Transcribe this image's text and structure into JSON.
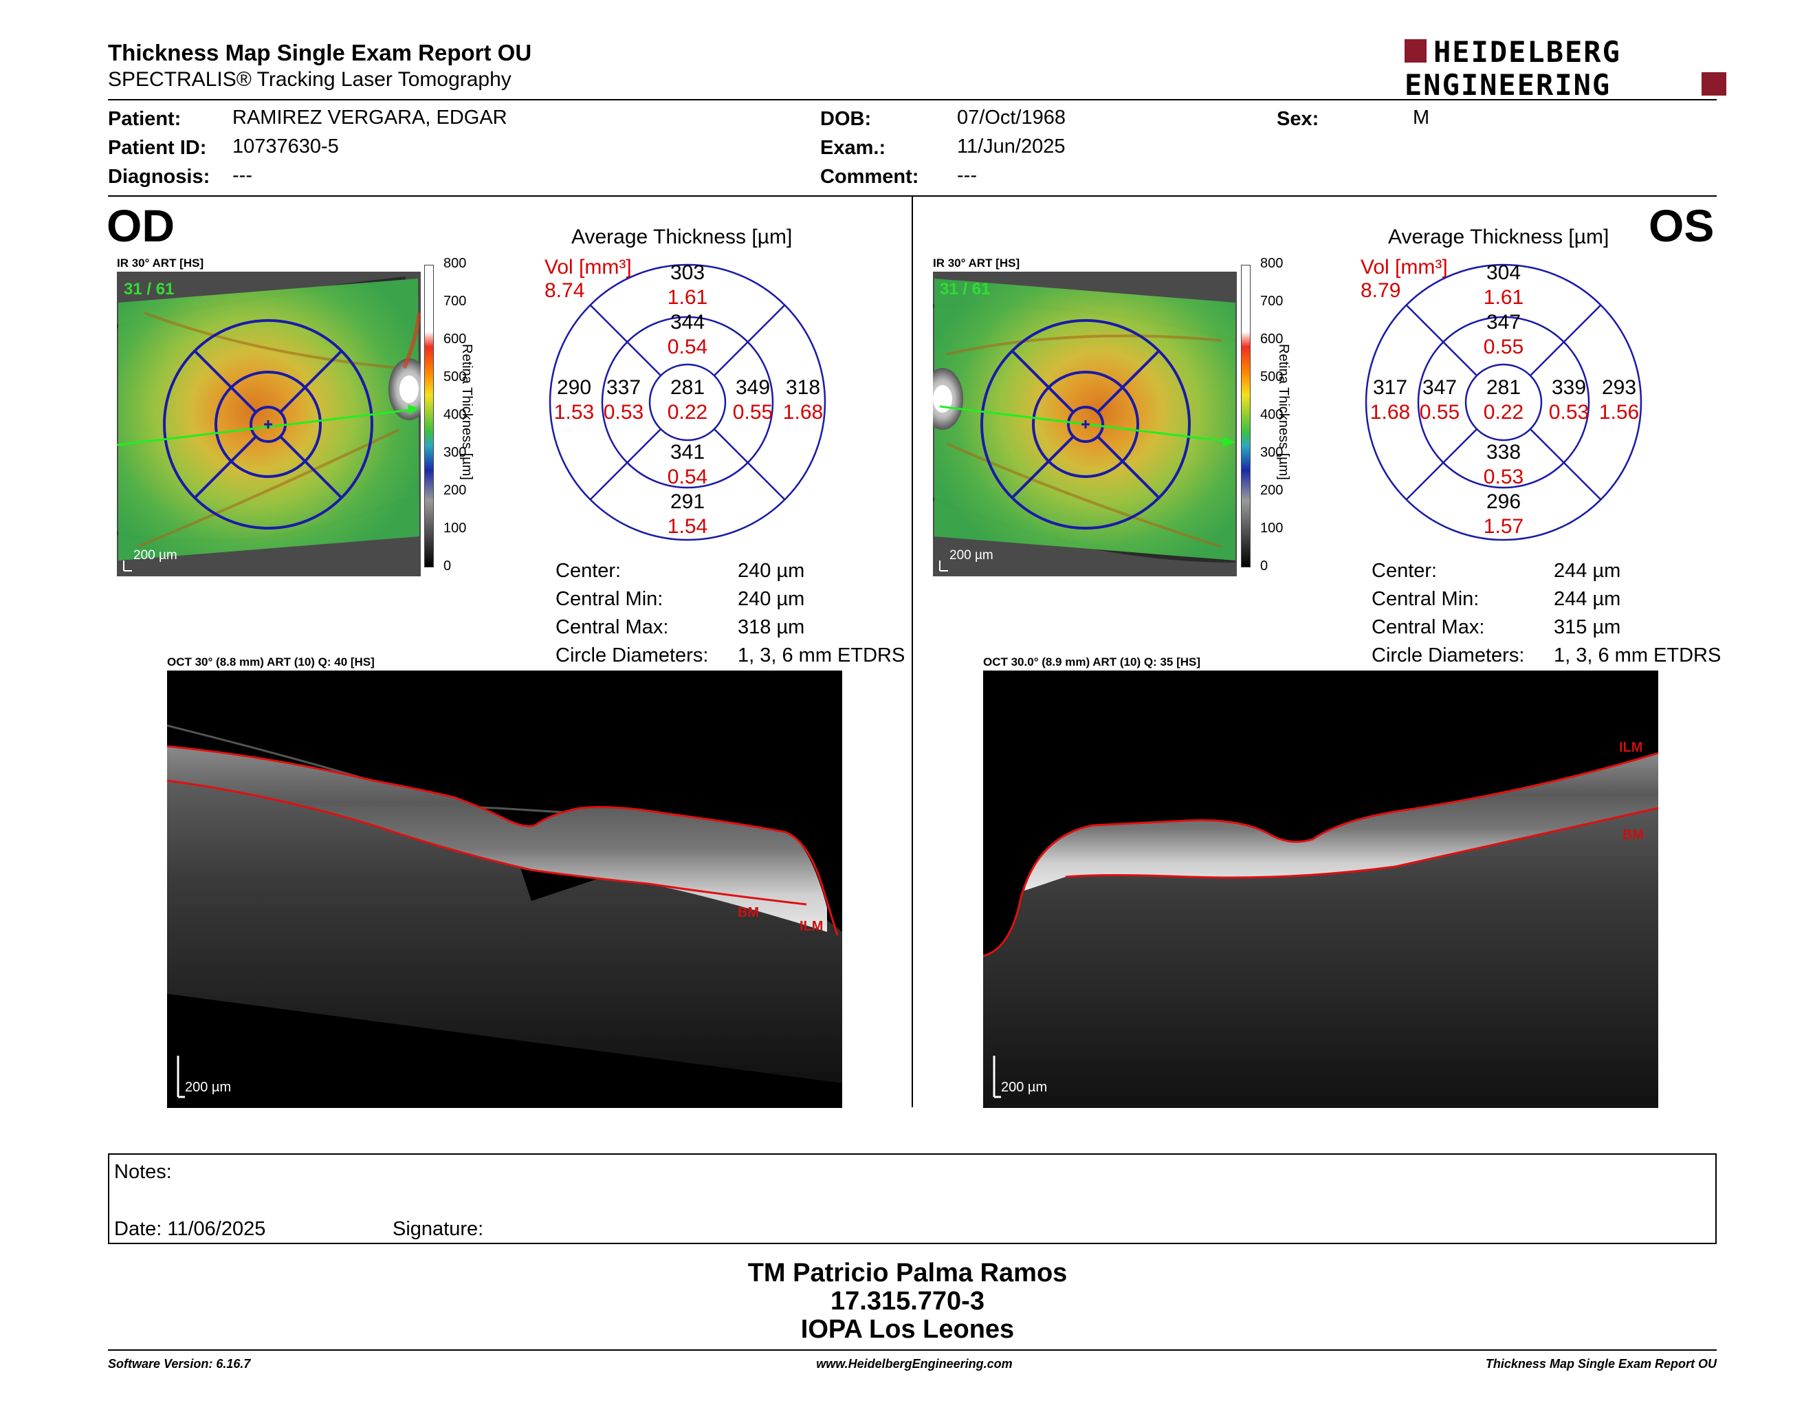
{
  "report": {
    "title": "Thickness Map Single Exam Report OU",
    "subtitle": "SPECTRALIS® Tracking Laser Tomography",
    "logo_line1": "HEIDELBERG",
    "logo_line2": "ENGINEERING"
  },
  "patient": {
    "patient_label": "Patient:",
    "patient_value": "RAMIREZ VERGARA, EDGAR",
    "id_label": "Patient ID:",
    "id_value": "10737630-5",
    "diagnosis_label": "Diagnosis:",
    "diagnosis_value": "---",
    "dob_label": "DOB:",
    "dob_value": "07/Oct/1968",
    "exam_label": "Exam.:",
    "exam_value": "11/Jun/2025",
    "comment_label": "Comment:",
    "comment_value": "---",
    "sex_label": "Sex:",
    "sex_value": "M"
  },
  "od": {
    "eye_label": "OD",
    "ir_label": "IR 30° ART [HS]",
    "frame_count": "31 / 61",
    "scale_bar": "200 µm",
    "colorbar_label": "Retina Thickness [µm]",
    "colorbar_ticks": [
      "800",
      "700",
      "600",
      "500",
      "400",
      "300",
      "200",
      "100",
      "0"
    ],
    "avg_title": "Average Thickness [µm]",
    "vol_label": "Vol [mm³]",
    "vol_value": "8.74",
    "etdrs": {
      "outer_sup": "303",
      "outer_sup_vol": "1.61",
      "inner_sup": "344",
      "inner_sup_vol": "0.54",
      "outer_left": "290",
      "outer_left_vol": "1.53",
      "inner_left": "337",
      "inner_left_vol": "0.53",
      "center": "281",
      "center_vol": "0.22",
      "inner_right": "349",
      "inner_right_vol": "0.55",
      "outer_right": "318",
      "outer_right_vol": "1.68",
      "inner_inf": "341",
      "inner_inf_vol": "0.54",
      "outer_inf": "291",
      "outer_inf_vol": "1.54"
    },
    "stats": [
      {
        "label": "Center:",
        "value": "240 µm"
      },
      {
        "label": "Central Min:",
        "value": "240 µm"
      },
      {
        "label": "Central Max:",
        "value": "318 µm"
      },
      {
        "label": "Circle Diameters:",
        "value": "1, 3, 6 mm ETDRS"
      }
    ],
    "oct_label": "OCT 30° (8.8 mm) ART (10) Q: 40 [HS]",
    "oct_scale": "200 µm",
    "bm_label": "BM",
    "ilm_label": "ILM"
  },
  "os": {
    "eye_label": "OS",
    "ir_label": "IR 30° ART [HS]",
    "frame_count": "31 / 61",
    "scale_bar": "200 µm",
    "colorbar_label": "Retina Thickness [µm]",
    "colorbar_ticks": [
      "800",
      "700",
      "600",
      "500",
      "400",
      "300",
      "200",
      "100",
      "0"
    ],
    "avg_title": "Average Thickness [µm]",
    "vol_label": "Vol [mm³]",
    "vol_value": "8.79",
    "etdrs": {
      "outer_sup": "304",
      "outer_sup_vol": "1.61",
      "inner_sup": "347",
      "inner_sup_vol": "0.55",
      "outer_left": "317",
      "outer_left_vol": "1.68",
      "inner_left": "347",
      "inner_left_vol": "0.55",
      "center": "281",
      "center_vol": "0.22",
      "inner_right": "339",
      "inner_right_vol": "0.53",
      "outer_right": "293",
      "outer_right_vol": "1.56",
      "inner_inf": "338",
      "inner_inf_vol": "0.53",
      "outer_inf": "296",
      "outer_inf_vol": "1.57"
    },
    "stats": [
      {
        "label": "Center:",
        "value": "244 µm"
      },
      {
        "label": "Central Min:",
        "value": "244 µm"
      },
      {
        "label": "Central Max:",
        "value": "315 µm"
      },
      {
        "label": "Circle Diameters:",
        "value": "1, 3, 6 mm ETDRS"
      }
    ],
    "oct_label": "OCT 30.0° (8.9 mm) ART (10) Q: 35 [HS]",
    "oct_scale": "200 µm",
    "bm_label": "BM",
    "ilm_label": "ILM"
  },
  "notes": {
    "notes_label": "Notes:",
    "date_label": "Date: 11/06/2025",
    "signature_label": "Signature:"
  },
  "signer": {
    "name": "TM Patricio Palma Ramos",
    "rut": "17.315.770-3",
    "institution": "IOPA Los Leones"
  },
  "footer": {
    "software": "Software Version: 6.16.7",
    "website": "www.HeidelbergEngineering.com",
    "report_name": "Thickness Map Single Exam Report OU"
  },
  "colors": {
    "grid_blue": "#1a1aa8",
    "volume_red": "#d40000",
    "layer_red": "#e01010",
    "green_text": "#33dd33"
  }
}
